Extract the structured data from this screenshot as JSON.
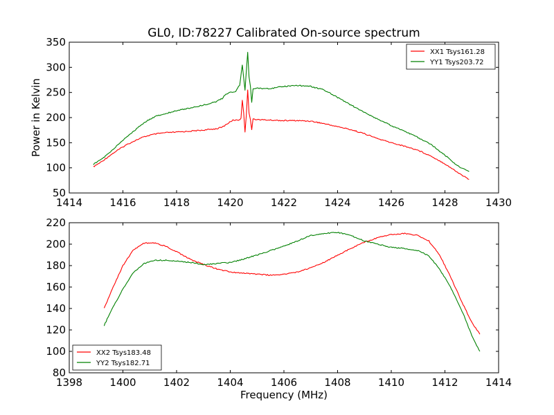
{
  "title": "GL0, ID:78227 Calibrated On-source spectrum",
  "chart_data": [
    {
      "type": "line",
      "title": "GL0, ID:78227 Calibrated On-source spectrum",
      "xlabel": "",
      "ylabel": "Power in Kelvin",
      "xlim": [
        1414,
        1430
      ],
      "ylim": [
        50,
        350
      ],
      "xticks": [
        1414,
        1416,
        1418,
        1420,
        1422,
        1424,
        1426,
        1428,
        1430
      ],
      "yticks": [
        50,
        100,
        150,
        200,
        250,
        300,
        350
      ],
      "legend_position": "top-right",
      "grid": false,
      "series": [
        {
          "name": "XX1 Tsys161.28",
          "color": "#ff0000",
          "points": [
            [
              1414.9,
              102
            ],
            [
              1415.2,
              112
            ],
            [
              1415.5,
              124
            ],
            [
              1415.8,
              135
            ],
            [
              1416.1,
              145
            ],
            [
              1416.4,
              153
            ],
            [
              1416.7,
              160
            ],
            [
              1417.0,
              165
            ],
            [
              1417.3,
              168
            ],
            [
              1417.6,
              170
            ],
            [
              1418.0,
              171
            ],
            [
              1418.5,
              173
            ],
            [
              1419.0,
              175
            ],
            [
              1419.5,
              178
            ],
            [
              1419.7,
              181
            ],
            [
              1419.9,
              188
            ],
            [
              1420.1,
              195
            ],
            [
              1420.3,
              195
            ],
            [
              1420.4,
              198
            ],
            [
              1420.45,
              235
            ],
            [
              1420.5,
              210
            ],
            [
              1420.55,
              172
            ],
            [
              1420.6,
              205
            ],
            [
              1420.65,
              255
            ],
            [
              1420.7,
              210
            ],
            [
              1420.75,
              195
            ],
            [
              1420.8,
              175
            ],
            [
              1420.85,
              198
            ],
            [
              1421.0,
              196
            ],
            [
              1421.5,
              195
            ],
            [
              1422.0,
              194
            ],
            [
              1422.5,
              194
            ],
            [
              1423.0,
              193
            ],
            [
              1423.5,
              188
            ],
            [
              1424.0,
              182
            ],
            [
              1424.5,
              176
            ],
            [
              1425.0,
              168
            ],
            [
              1425.5,
              158
            ],
            [
              1426.0,
              150
            ],
            [
              1426.5,
              143
            ],
            [
              1427.0,
              135
            ],
            [
              1427.5,
              123
            ],
            [
              1428.0,
              108
            ],
            [
              1428.5,
              90
            ],
            [
              1428.9,
              77
            ]
          ]
        },
        {
          "name": "YY1 Tsys203.72",
          "color": "#008000",
          "points": [
            [
              1414.9,
              107
            ],
            [
              1415.2,
              117
            ],
            [
              1415.5,
              130
            ],
            [
              1415.8,
              145
            ],
            [
              1416.1,
              160
            ],
            [
              1416.4,
              173
            ],
            [
              1416.7,
              186
            ],
            [
              1417.0,
              197
            ],
            [
              1417.3,
              204
            ],
            [
              1417.6,
              208
            ],
            [
              1418.0,
              214
            ],
            [
              1418.5,
              219
            ],
            [
              1419.0,
              225
            ],
            [
              1419.5,
              232
            ],
            [
              1419.7,
              238
            ],
            [
              1419.8,
              245
            ],
            [
              1420.0,
              250
            ],
            [
              1420.2,
              252
            ],
            [
              1420.35,
              265
            ],
            [
              1420.45,
              305
            ],
            [
              1420.5,
              278
            ],
            [
              1420.55,
              255
            ],
            [
              1420.65,
              330
            ],
            [
              1420.7,
              280
            ],
            [
              1420.75,
              262
            ],
            [
              1420.8,
              230
            ],
            [
              1420.85,
              258
            ],
            [
              1421.0,
              258
            ],
            [
              1421.5,
              258
            ],
            [
              1422.0,
              262
            ],
            [
              1422.5,
              264
            ],
            [
              1423.0,
              262
            ],
            [
              1423.5,
              255
            ],
            [
              1424.0,
              240
            ],
            [
              1424.5,
              225
            ],
            [
              1425.0,
              210
            ],
            [
              1425.5,
              197
            ],
            [
              1426.0,
              184
            ],
            [
              1426.5,
              173
            ],
            [
              1427.0,
              160
            ],
            [
              1427.5,
              146
            ],
            [
              1428.0,
              125
            ],
            [
              1428.5,
              103
            ],
            [
              1428.9,
              93
            ]
          ]
        }
      ]
    },
    {
      "type": "line",
      "title": "",
      "xlabel": "Frequency (MHz)",
      "ylabel": "",
      "xlim": [
        1398,
        1414
      ],
      "ylim": [
        80,
        220
      ],
      "xticks": [
        1398,
        1400,
        1402,
        1404,
        1406,
        1408,
        1410,
        1412,
        1414
      ],
      "yticks": [
        80,
        100,
        120,
        140,
        160,
        180,
        200,
        220
      ],
      "legend_position": "bottom-left",
      "grid": false,
      "series": [
        {
          "name": "XX2 Tsys183.48",
          "color": "#ff0000",
          "points": [
            [
              1399.3,
              140
            ],
            [
              1399.6,
              158
            ],
            [
              1400.0,
              180
            ],
            [
              1400.4,
              195
            ],
            [
              1400.8,
              201
            ],
            [
              1401.2,
              201
            ],
            [
              1401.6,
              198
            ],
            [
              1402.0,
              193
            ],
            [
              1402.5,
              186
            ],
            [
              1403.0,
              181
            ],
            [
              1403.5,
              177
            ],
            [
              1404.0,
              174
            ],
            [
              1404.5,
              173
            ],
            [
              1405.0,
              172
            ],
            [
              1405.5,
              171
            ],
            [
              1406.0,
              172
            ],
            [
              1406.5,
              174
            ],
            [
              1407.0,
              178
            ],
            [
              1407.5,
              183
            ],
            [
              1408.0,
              190
            ],
            [
              1408.5,
              196
            ],
            [
              1409.0,
              202
            ],
            [
              1409.5,
              206
            ],
            [
              1410.0,
              209
            ],
            [
              1410.5,
              210
            ],
            [
              1411.0,
              208
            ],
            [
              1411.4,
              203
            ],
            [
              1411.8,
              190
            ],
            [
              1412.2,
              170
            ],
            [
              1412.6,
              148
            ],
            [
              1413.0,
              127
            ],
            [
              1413.3,
              116
            ]
          ]
        },
        {
          "name": "YY2 Tsys182.71",
          "color": "#008000",
          "points": [
            [
              1399.3,
              124
            ],
            [
              1399.6,
              140
            ],
            [
              1400.0,
              158
            ],
            [
              1400.4,
              174
            ],
            [
              1400.8,
              182
            ],
            [
              1401.2,
              185
            ],
            [
              1401.6,
              185
            ],
            [
              1402.0,
              184
            ],
            [
              1402.5,
              183
            ],
            [
              1403.0,
              181
            ],
            [
              1403.5,
              182
            ],
            [
              1404.0,
              183
            ],
            [
              1404.5,
              186
            ],
            [
              1405.0,
              190
            ],
            [
              1405.5,
              194
            ],
            [
              1406.0,
              198
            ],
            [
              1406.5,
              203
            ],
            [
              1407.0,
              208
            ],
            [
              1407.5,
              210
            ],
            [
              1408.0,
              211
            ],
            [
              1408.5,
              208
            ],
            [
              1409.0,
              203
            ],
            [
              1409.5,
              200
            ],
            [
              1410.0,
              197
            ],
            [
              1410.5,
              196
            ],
            [
              1411.0,
              194
            ],
            [
              1411.4,
              189
            ],
            [
              1411.8,
              177
            ],
            [
              1412.2,
              160
            ],
            [
              1412.6,
              140
            ],
            [
              1413.0,
              115
            ],
            [
              1413.3,
              100
            ]
          ]
        }
      ]
    }
  ]
}
